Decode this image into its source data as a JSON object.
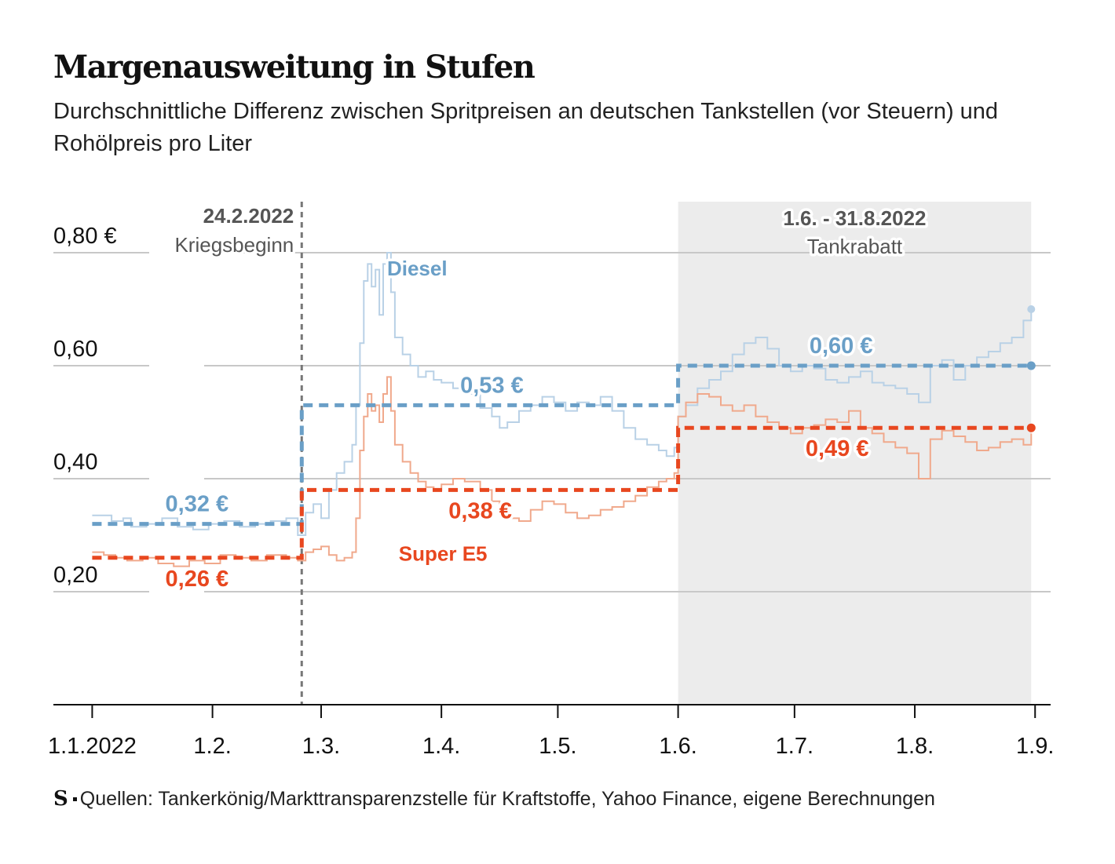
{
  "title": "Margenausweitung in Stufen",
  "subtitle": "Durchschnittliche Differenz zwischen Spritpreisen an deutschen Tankstellen (vor Steuern) und Rohölpreis pro Liter",
  "source": "Quellen: Tankerkönig/Markttransparenzstelle für Kraftstoffe, Yahoo Finance, eigene Berechnungen",
  "logo": "S",
  "colors": {
    "diesel": "#6a9fc7",
    "diesel_light": "#b9d1e6",
    "super": "#e8471f",
    "super_light": "#f0a98c",
    "shade": "#ececec",
    "grid": "#c8c8c8",
    "marker": "#777777"
  },
  "chart_data": {
    "type": "line",
    "x_unit": "days since 1.1.2022",
    "xlim": [
      -10,
      247
    ],
    "ylim": [
      0,
      0.8
    ],
    "yticks": [
      {
        "value": 0.2,
        "label": "0,20"
      },
      {
        "value": 0.4,
        "label": "0,40"
      },
      {
        "value": 0.6,
        "label": "0,60"
      },
      {
        "value": 0.8,
        "label": "0,80 €"
      }
    ],
    "xticks": [
      {
        "value": 0,
        "label": "1.1.2022"
      },
      {
        "value": 31,
        "label": "1.2."
      },
      {
        "value": 59,
        "label": "1.3."
      },
      {
        "value": 90,
        "label": "1.4."
      },
      {
        "value": 120,
        "label": "1.5."
      },
      {
        "value": 151,
        "label": "1.6."
      },
      {
        "value": 181,
        "label": "1.7."
      },
      {
        "value": 212,
        "label": "1.8."
      },
      {
        "value": 243,
        "label": "1.9."
      }
    ],
    "event": {
      "x": 54,
      "date": "24.2.2022",
      "label": "Kriegsbeginn"
    },
    "period": {
      "start": 151,
      "end": 242,
      "date": "1.6. - 31.8.2022",
      "label": "Tankrabatt"
    },
    "series": [
      {
        "name": "Diesel",
        "x": [
          0,
          5,
          8,
          10,
          14,
          18,
          22,
          26,
          30,
          34,
          38,
          42,
          46,
          50,
          53,
          55,
          57,
          59,
          61,
          63,
          65,
          67,
          68,
          69,
          70,
          71,
          72,
          73,
          74,
          75,
          76,
          77,
          78,
          80,
          82,
          84,
          86,
          88,
          90,
          93,
          96,
          100,
          103,
          105,
          107,
          110,
          113,
          116,
          119,
          122,
          125,
          128,
          131,
          134,
          137,
          140,
          143,
          146,
          148,
          150,
          151,
          153,
          156,
          159,
          162,
          165,
          168,
          171,
          174,
          177,
          180,
          183,
          186,
          189,
          192,
          195,
          198,
          201,
          204,
          207,
          210,
          213,
          216,
          219,
          222,
          225,
          228,
          231,
          234,
          237,
          240,
          242
        ],
        "values": [
          0.335,
          0.325,
          0.33,
          0.315,
          0.32,
          0.33,
          0.315,
          0.31,
          0.32,
          0.325,
          0.315,
          0.32,
          0.325,
          0.33,
          0.3,
          0.34,
          0.355,
          0.33,
          0.38,
          0.41,
          0.43,
          0.46,
          0.53,
          0.64,
          0.75,
          0.78,
          0.74,
          0.77,
          0.69,
          0.78,
          0.8,
          0.73,
          0.65,
          0.62,
          0.6,
          0.58,
          0.59,
          0.575,
          0.57,
          0.56,
          0.55,
          0.525,
          0.51,
          0.49,
          0.5,
          0.52,
          0.53,
          0.545,
          0.535,
          0.52,
          0.535,
          0.53,
          0.545,
          0.52,
          0.49,
          0.47,
          0.46,
          0.45,
          0.44,
          0.455,
          0.51,
          0.53,
          0.56,
          0.575,
          0.59,
          0.62,
          0.64,
          0.65,
          0.63,
          0.6,
          0.59,
          0.6,
          0.595,
          0.575,
          0.57,
          0.58,
          0.59,
          0.57,
          0.565,
          0.56,
          0.55,
          0.535,
          0.6,
          0.61,
          0.575,
          0.6,
          0.615,
          0.625,
          0.64,
          0.65,
          0.68,
          0.7
        ]
      },
      {
        "name": "Super E5",
        "x": [
          0,
          3,
          6,
          9,
          13,
          17,
          21,
          25,
          29,
          33,
          37,
          41,
          45,
          50,
          53,
          55,
          57,
          59,
          61,
          63,
          65,
          67,
          68,
          69,
          70,
          71,
          72,
          73,
          74,
          75,
          76,
          77,
          78,
          80,
          82,
          84,
          86,
          88,
          90,
          93,
          96,
          100,
          103,
          105,
          107,
          110,
          113,
          116,
          119,
          122,
          125,
          128,
          131,
          134,
          137,
          140,
          143,
          146,
          148,
          150,
          151,
          153,
          156,
          159,
          162,
          165,
          168,
          171,
          174,
          177,
          180,
          183,
          186,
          189,
          192,
          195,
          198,
          201,
          204,
          207,
          210,
          213,
          216,
          219,
          222,
          225,
          228,
          231,
          234,
          237,
          240,
          242
        ],
        "values": [
          0.27,
          0.265,
          0.26,
          0.255,
          0.26,
          0.25,
          0.245,
          0.255,
          0.25,
          0.265,
          0.26,
          0.255,
          0.265,
          0.26,
          0.255,
          0.27,
          0.275,
          0.28,
          0.265,
          0.255,
          0.26,
          0.27,
          0.33,
          0.45,
          0.51,
          0.55,
          0.52,
          0.53,
          0.5,
          0.55,
          0.58,
          0.52,
          0.46,
          0.43,
          0.41,
          0.395,
          0.385,
          0.38,
          0.39,
          0.4,
          0.395,
          0.38,
          0.36,
          0.34,
          0.33,
          0.325,
          0.345,
          0.36,
          0.355,
          0.34,
          0.33,
          0.335,
          0.345,
          0.35,
          0.36,
          0.37,
          0.385,
          0.395,
          0.4,
          0.41,
          0.51,
          0.535,
          0.55,
          0.545,
          0.53,
          0.52,
          0.53,
          0.51,
          0.5,
          0.49,
          0.48,
          0.49,
          0.495,
          0.505,
          0.5,
          0.52,
          0.49,
          0.48,
          0.465,
          0.455,
          0.445,
          0.4,
          0.47,
          0.485,
          0.475,
          0.465,
          0.45,
          0.455,
          0.465,
          0.47,
          0.46,
          0.48
        ]
      }
    ],
    "step_averages": [
      {
        "series": "Diesel",
        "segments": [
          {
            "from": 0,
            "to": 54,
            "value": 0.32
          },
          {
            "from": 54,
            "to": 151,
            "value": 0.53
          },
          {
            "from": 151,
            "to": 242,
            "value": 0.6
          }
        ]
      },
      {
        "series": "Super E5",
        "segments": [
          {
            "from": 0,
            "to": 54,
            "value": 0.26
          },
          {
            "from": 54,
            "to": 151,
            "value": 0.38
          },
          {
            "from": 151,
            "to": 242,
            "value": 0.49
          }
        ]
      }
    ],
    "annotations": [
      {
        "series": "Diesel",
        "text": "0,32 €",
        "x": 27,
        "y": 0.32,
        "pos": "above"
      },
      {
        "series": "Diesel",
        "text": "0,53 €",
        "x": 103,
        "y": 0.53,
        "pos": "above"
      },
      {
        "series": "Diesel",
        "text": "0,60 €",
        "x": 193,
        "y": 0.6,
        "pos": "above"
      },
      {
        "series": "Super E5",
        "text": "0,26 €",
        "x": 27,
        "y": 0.26,
        "pos": "below"
      },
      {
        "series": "Super E5",
        "text": "0,38 €",
        "x": 100,
        "y": 0.38,
        "pos": "below"
      },
      {
        "series": "Super E5",
        "text": "0,49 €",
        "x": 192,
        "y": 0.49,
        "pos": "below"
      }
    ],
    "series_labels": [
      {
        "series": "Diesel",
        "text": "Diesel",
        "x": 76,
        "y": 0.76
      },
      {
        "series": "Super E5",
        "text": "Super E5",
        "x": 79,
        "y": 0.255
      }
    ]
  }
}
